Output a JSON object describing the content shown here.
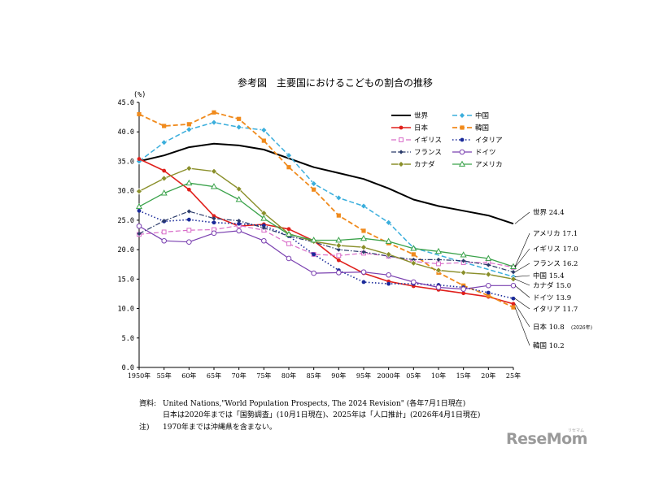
{
  "chart_data": {
    "type": "line",
    "title": "参考図　主要国におけるこどもの割合の推移",
    "y_unit_label": "(%)",
    "ylim": [
      0,
      45
    ],
    "y_ticks": [
      "0.0",
      "5.0",
      "10.0",
      "15.0",
      "20.0",
      "25.0",
      "30.0",
      "35.0",
      "40.0",
      "45.0"
    ],
    "x_tick_labels": [
      "1950年",
      "55年",
      "60年",
      "65年",
      "70年",
      "75年",
      "80年",
      "85年",
      "90年",
      "95年",
      "2000年",
      "05年",
      "10年",
      "15年",
      "20年",
      "25年"
    ],
    "grid": false,
    "legend_position": "top-right",
    "series": [
      {
        "key": "world",
        "name": "世界",
        "color": "#000000",
        "dash": "solid",
        "marker": "none",
        "width": 2,
        "values": [
          35.0,
          36.0,
          37.4,
          38.0,
          37.7,
          37.0,
          35.5,
          34.0,
          33.0,
          32.0,
          30.4,
          28.5,
          27.4,
          26.6,
          25.8,
          24.4
        ]
      },
      {
        "key": "china",
        "name": "中国",
        "color": "#3aaedc",
        "dash": "dash",
        "marker": "diamond",
        "width": 1.5,
        "values": [
          35.0,
          38.2,
          40.4,
          41.6,
          40.8,
          40.3,
          36.0,
          31.2,
          28.8,
          27.4,
          24.6,
          20.3,
          null,
          null,
          null,
          15.4
        ]
      },
      {
        "key": "japan",
        "name": "日本",
        "color": "#e0201c",
        "dash": "solid",
        "marker": "dot",
        "width": 1.6,
        "values": [
          35.4,
          33.4,
          30.2,
          25.7,
          24.0,
          24.3,
          23.5,
          21.5,
          18.2,
          16.0,
          14.6,
          13.8,
          13.2,
          12.6,
          12.0,
          10.8
        ]
      },
      {
        "key": "korea",
        "name": "韓国",
        "color": "#f08a1c",
        "dash": "dash",
        "marker": "square",
        "width": 1.8,
        "values": [
          43.0,
          41.0,
          41.3,
          43.3,
          42.2,
          38.5,
          34.0,
          30.2,
          25.8,
          23.2,
          21.1,
          19.2,
          16.1,
          13.9,
          12.2,
          10.2
        ]
      },
      {
        "key": "uk",
        "name": "イギリス",
        "color": "#d86cc8",
        "dash": "dash",
        "marker": "square-open",
        "width": 1.2,
        "values": [
          22.6,
          23.0,
          23.3,
          23.4,
          24.1,
          23.3,
          21.0,
          19.2,
          19.0,
          19.4,
          18.9,
          18.0,
          17.6,
          17.8,
          17.8,
          17.0
        ]
      },
      {
        "key": "italy",
        "name": "イタリア",
        "color": "#1a2a9a",
        "dash": "dot",
        "marker": "dot",
        "width": 1.6,
        "values": [
          26.6,
          24.8,
          25.1,
          24.6,
          24.4,
          24.1,
          22.3,
          19.2,
          16.5,
          14.5,
          14.2,
          14.2,
          14.0,
          13.6,
          12.7,
          11.7
        ]
      },
      {
        "key": "france",
        "name": "フランス",
        "color": "#2a3a6a",
        "dash": "dashdot",
        "marker": "diamond-small",
        "width": 1.2,
        "values": [
          22.7,
          24.9,
          26.5,
          25.3,
          24.9,
          23.7,
          22.3,
          21.3,
          20.0,
          19.6,
          18.9,
          18.3,
          18.3,
          18.1,
          17.4,
          16.2
        ]
      },
      {
        "key": "germany",
        "name": "ドイツ",
        "color": "#7a40b0",
        "dash": "solid",
        "marker": "circle-open",
        "width": 1.2,
        "values": [
          24.0,
          21.5,
          21.3,
          22.8,
          23.2,
          21.5,
          18.5,
          16.0,
          16.1,
          16.2,
          15.7,
          14.5,
          13.6,
          13.3,
          13.9,
          13.9
        ]
      },
      {
        "key": "canada",
        "name": "カナダ",
        "color": "#8a8f2a",
        "dash": "solid",
        "marker": "diamond",
        "width": 1.4,
        "values": [
          29.9,
          32.1,
          33.8,
          33.3,
          30.3,
          26.2,
          22.7,
          21.4,
          20.7,
          20.4,
          19.2,
          17.7,
          16.5,
          16.1,
          15.8,
          15.0
        ]
      },
      {
        "key": "usa",
        "name": "アメリカ",
        "color": "#3aa24a",
        "dash": "solid",
        "marker": "triangle-open",
        "width": 1.3,
        "values": [
          27.3,
          29.6,
          31.3,
          30.7,
          28.5,
          25.3,
          22.6,
          21.6,
          21.6,
          21.9,
          21.4,
          20.2,
          19.7,
          19.1,
          18.5,
          17.1
        ]
      }
    ],
    "end_labels": [
      {
        "key": "world",
        "text": "世界 24.4",
        "sub": ""
      },
      {
        "key": "usa",
        "text": "アメリカ 17.1",
        "sub": ""
      },
      {
        "key": "uk",
        "text": "イギリス 17.0",
        "sub": ""
      },
      {
        "key": "france",
        "text": "フランス 16.2",
        "sub": ""
      },
      {
        "key": "china",
        "text": "中国 15.4",
        "sub": ""
      },
      {
        "key": "canada",
        "text": "カナダ 15.0",
        "sub": ""
      },
      {
        "key": "germany",
        "text": "ドイツ 13.9",
        "sub": ""
      },
      {
        "key": "italy",
        "text": "イタリア 11.7",
        "sub": ""
      },
      {
        "key": "japan",
        "text": "日本 10.8",
        "sub": "(2026年)"
      },
      {
        "key": "korea",
        "text": "韓国 10.2",
        "sub": ""
      }
    ]
  },
  "notes": {
    "source_label": "資料:",
    "source_line1": "United Nations,\"World Population Prospects, The 2024 Revision\" (各年7月1日現在)",
    "source_line2": "日本は2020年までは「国勢調査」(10月1日現在)、2025年は「人口推計」(2026年4月1日現在)",
    "note_label": "注)",
    "note_line": "1970年までは沖縄県を含まない。"
  },
  "watermark": {
    "text": "ReseMom",
    "sub": "リセマム"
  }
}
